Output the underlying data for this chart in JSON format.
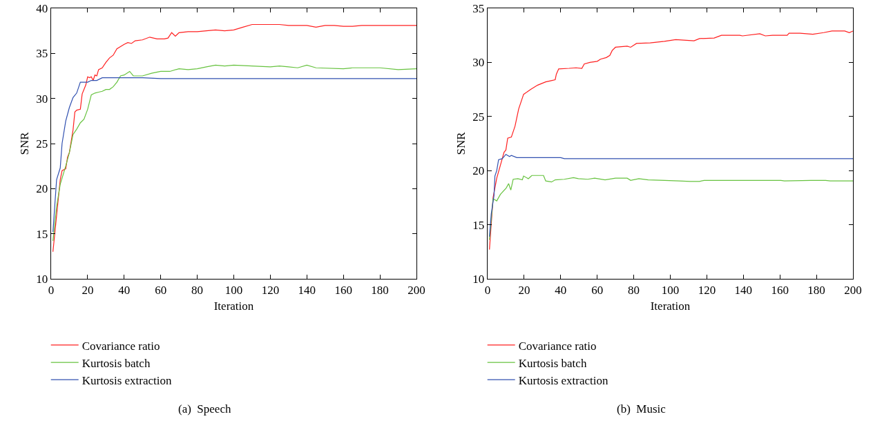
{
  "chart_data": [
    {
      "type": "line",
      "xlabel": "Iteration",
      "ylabel": "SNR",
      "xlim": [
        0,
        200
      ],
      "ylim": [
        10,
        40
      ],
      "xticks": [
        0,
        20,
        40,
        60,
        80,
        100,
        120,
        140,
        160,
        180,
        200
      ],
      "yticks": [
        10,
        15,
        20,
        25,
        30,
        35,
        40
      ],
      "grid": false,
      "legend": "bottom",
      "marker": "none",
      "line_style": "solid",
      "annotations": [
        "(a)  Speech"
      ],
      "series": [
        {
          "name": "Covariance ratio",
          "color": "#ff1f1f",
          "x": [
            1,
            3,
            5,
            6,
            8,
            9,
            10,
            12,
            13,
            14,
            16,
            17,
            19,
            20,
            21,
            22,
            23,
            24,
            25,
            26,
            28,
            30,
            32,
            34,
            36,
            40,
            42,
            44,
            46,
            50,
            54,
            58,
            62,
            64,
            66,
            68,
            70,
            75,
            80,
            85,
            90,
            95,
            100,
            105,
            110,
            115,
            120,
            125,
            130,
            140,
            145,
            150,
            155,
            160,
            165,
            170,
            200
          ],
          "values": [
            13,
            17,
            21,
            22,
            22.2,
            23.5,
            24,
            26.5,
            28.5,
            28.7,
            28.8,
            30.5,
            31.5,
            32.4,
            32.3,
            32.4,
            32,
            32.6,
            32.5,
            33.2,
            33.4,
            34,
            34.5,
            34.8,
            35.5,
            36,
            36.2,
            36.1,
            36.4,
            36.5,
            36.8,
            36.6,
            36.6,
            36.7,
            37.3,
            36.9,
            37.3,
            37.4,
            37.4,
            37.5,
            37.6,
            37.5,
            37.6,
            37.9,
            38.2,
            38.2,
            38.2,
            38.2,
            38.1,
            38.1,
            37.9,
            38.1,
            38.1,
            38,
            38,
            38.1,
            38.1
          ]
        },
        {
          "name": "Kurtosis batch",
          "color": "#66c23e",
          "x": [
            1,
            3,
            5,
            8,
            10,
            12,
            14,
            16,
            18,
            20,
            22,
            24,
            26,
            28,
            30,
            32,
            34,
            36,
            38,
            40,
            43,
            45,
            50,
            55,
            60,
            65,
            70,
            75,
            80,
            85,
            90,
            95,
            100,
            110,
            120,
            125,
            130,
            135,
            140,
            145,
            160,
            165,
            180,
            190,
            200
          ],
          "values": [
            14.2,
            18,
            20.5,
            22.5,
            24,
            26,
            26.6,
            27.3,
            27.7,
            28.8,
            30.4,
            30.6,
            30.7,
            30.8,
            31,
            31,
            31.3,
            31.8,
            32.5,
            32.6,
            33,
            32.5,
            32.5,
            32.8,
            33,
            33,
            33.3,
            33.2,
            33.3,
            33.5,
            33.7,
            33.6,
            33.7,
            33.6,
            33.5,
            33.6,
            33.5,
            33.4,
            33.7,
            33.4,
            33.3,
            33.4,
            33.4,
            33.2,
            33.3
          ]
        },
        {
          "name": "Kurtosis extraction",
          "color": "#3050b0",
          "x": [
            1,
            3,
            5,
            6,
            8,
            10,
            12,
            14,
            16,
            20,
            22,
            25,
            28,
            35,
            50,
            60,
            200
          ],
          "values": [
            15.2,
            21,
            22.3,
            25,
            27.5,
            29,
            30.1,
            30.6,
            31.8,
            31.8,
            32,
            32,
            32.3,
            32.3,
            32.3,
            32.2,
            32.2
          ]
        }
      ]
    },
    {
      "type": "line",
      "xlabel": "Iteration",
      "ylabel": "SNR",
      "xlim": [
        0,
        200
      ],
      "ylim": [
        10,
        35
      ],
      "xticks": [
        0,
        20,
        40,
        60,
        80,
        100,
        120,
        140,
        160,
        180,
        200
      ],
      "yticks": [
        10,
        15,
        20,
        25,
        30,
        35
      ],
      "grid": false,
      "legend": "bottom",
      "marker": "none",
      "line_style": "solid",
      "annotations": [
        "(b)  Music"
      ],
      "series": [
        {
          "name": "Covariance ratio",
          "color": "#ff1f1f",
          "x": [
            1,
            3,
            5,
            7,
            9,
            10,
            11,
            13,
            15,
            17,
            19.7,
            23.6,
            27.4,
            31.8,
            34.4,
            37,
            37.6,
            38.9,
            44.6,
            48.4,
            51.6,
            52.9,
            56,
            60,
            61.8,
            65,
            66.9,
            68.2,
            70,
            76.4,
            78.3,
            81.5,
            89,
            96.8,
            103,
            113,
            116,
            124,
            128,
            138,
            139.5,
            149,
            152,
            156,
            164,
            165,
            171,
            178,
            184,
            188.5,
            195.5,
            198,
            200
          ],
          "values": [
            12.7,
            17.5,
            19.3,
            20.5,
            21.7,
            21.9,
            23,
            23.1,
            24.1,
            25.7,
            27.05,
            27.5,
            27.9,
            28.2,
            28.3,
            28.4,
            28.9,
            29.4,
            29.45,
            29.5,
            29.45,
            29.85,
            30,
            30.1,
            30.3,
            30.45,
            30.65,
            31.1,
            31.4,
            31.5,
            31.4,
            31.75,
            31.8,
            31.95,
            32.1,
            32,
            32.2,
            32.25,
            32.5,
            32.5,
            32.45,
            32.65,
            32.45,
            32.5,
            32.5,
            32.7,
            32.7,
            32.6,
            32.75,
            32.9,
            32.9,
            32.75,
            32.9
          ]
        },
        {
          "name": "Kurtosis batch",
          "color": "#66c23e",
          "x": [
            1,
            3,
            4,
            5,
            7,
            10.2,
            11.5,
            12.7,
            14,
            16.6,
            19,
            19.7,
            22.3,
            24.2,
            30.6,
            31.8,
            35,
            37,
            42,
            47,
            49.7,
            54.8,
            58.6,
            64.3,
            70,
            76.4,
            78.3,
            82.8,
            87.9,
            96.8,
            104.5,
            111,
            116,
            118.5,
            160.5,
            162.5,
            177,
            185,
            187.5,
            200
          ],
          "values": [
            13.6,
            17.4,
            17.3,
            17.2,
            17.8,
            18.4,
            18.8,
            18.2,
            19.2,
            19.25,
            19.15,
            19.5,
            19.25,
            19.55,
            19.55,
            19.05,
            18.95,
            19.15,
            19.2,
            19.35,
            19.25,
            19.2,
            19.3,
            19.15,
            19.3,
            19.3,
            19.1,
            19.25,
            19.15,
            19.1,
            19.05,
            19,
            19,
            19.1,
            19.1,
            19.05,
            19.1,
            19.1,
            19.05,
            19.05
          ]
        },
        {
          "name": "Kurtosis extraction",
          "color": "#3050b0",
          "x": [
            1,
            2,
            3.5,
            4,
            5,
            6,
            8,
            9,
            10,
            12,
            13,
            16,
            20,
            30,
            40,
            42,
            200
          ],
          "values": [
            13.9,
            16,
            17.7,
            19.5,
            20,
            21,
            21.1,
            21.3,
            21.5,
            21.3,
            21.4,
            21.2,
            21.2,
            21.2,
            21.2,
            21.1,
            21.1
          ]
        }
      ]
    }
  ]
}
